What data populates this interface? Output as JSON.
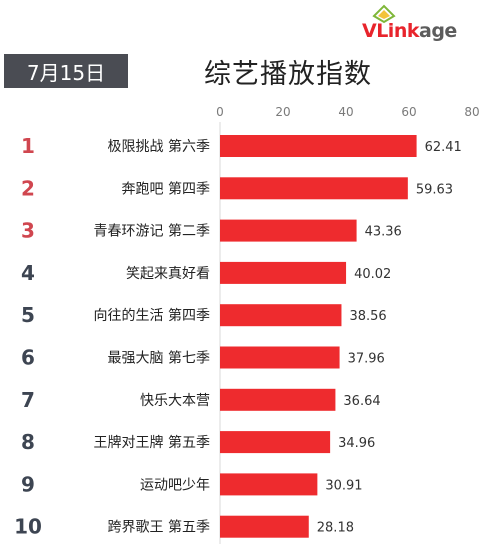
{
  "logo": {
    "text_red": "VLink",
    "text_gray": "age"
  },
  "header": {
    "date": "7月15日",
    "title": "综艺播放指数"
  },
  "colors": {
    "bar": "#ee2b2e",
    "rank_top": "#d0464f",
    "rank_other": "#3d4552",
    "badge": "#4a4c53"
  },
  "chart_data": {
    "type": "bar",
    "orientation": "horizontal",
    "title": "综艺播放指数",
    "ranks": [
      "1",
      "2",
      "3",
      "4",
      "5",
      "6",
      "7",
      "8",
      "9",
      "10"
    ],
    "categories": [
      "极限挑战 第六季",
      "奔跑吧 第四季",
      "青春环游记 第二季",
      "笑起来真好看",
      "向往的生活 第四季",
      "最强大脑 第七季",
      "快乐大本营",
      "王牌对王牌 第五季",
      "运动吧少年",
      "跨界歌王 第五季"
    ],
    "values": [
      62.41,
      59.63,
      43.36,
      40.02,
      38.56,
      37.96,
      36.64,
      34.96,
      30.91,
      28.18
    ],
    "xlim": [
      0,
      80
    ],
    "xticks": [
      0,
      20,
      40,
      60,
      80
    ],
    "grid": false,
    "axis_position": "top"
  }
}
